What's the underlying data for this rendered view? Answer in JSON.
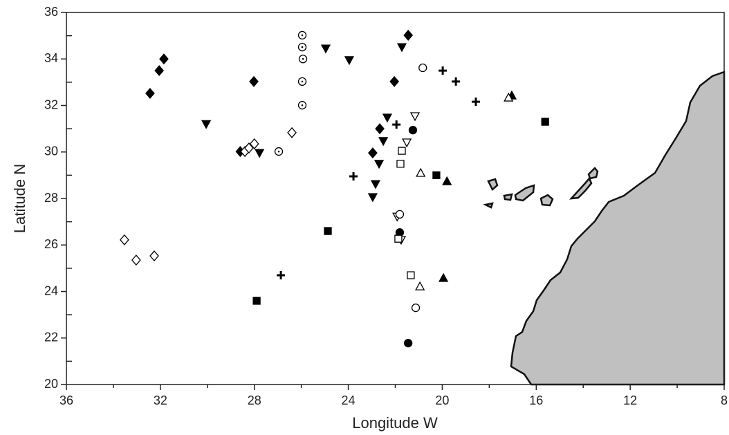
{
  "chart_data": {
    "type": "scatter",
    "x_label": "Longitude W",
    "y_label": "Latitude N",
    "xlim": [
      36,
      8
    ],
    "xticks": [
      36,
      32,
      28,
      24,
      20,
      16,
      12,
      8
    ],
    "xminorticks": [
      34,
      30,
      26,
      22,
      18,
      14,
      10
    ],
    "ylim": [
      20,
      36
    ],
    "yticks": [
      20,
      22,
      24,
      26,
      28,
      30,
      32,
      34,
      36
    ],
    "yminorticks": [
      21,
      23,
      25,
      27,
      29,
      31,
      33,
      35
    ],
    "series": [
      {
        "marker": "diamond",
        "color": "#000",
        "filled": true,
        "x": [
          32.44,
          32.05,
          31.85,
          28.02,
          28.6,
          22.66,
          22.96,
          21.45,
          22.04
        ],
        "values": [
          32.52,
          33.5,
          34.0,
          33.03,
          30.02,
          31.0,
          29.96,
          35.02,
          33.03
        ]
      },
      {
        "marker": "diamond",
        "color": "#000",
        "filled": false,
        "x": [
          33.53,
          33.03,
          32.26,
          28.4,
          28.23,
          28.0,
          26.4
        ],
        "values": [
          26.22,
          25.35,
          25.53,
          30.02,
          30.17,
          30.35,
          30.83
        ]
      },
      {
        "marker": "triangle-down",
        "color": "#000",
        "filled": true,
        "x": [
          30.05,
          24.96,
          23.96,
          21.72,
          27.78,
          22.34,
          22.51,
          22.69,
          22.84,
          22.96
        ],
        "values": [
          31.2,
          34.45,
          33.95,
          34.51,
          29.96,
          31.48,
          30.47,
          29.49,
          28.62,
          28.06
        ]
      },
      {
        "marker": "triangle-down",
        "color": "#000",
        "filled": false,
        "x": [
          21.16,
          21.51,
          21.92,
          21.75
        ],
        "values": [
          31.54,
          30.41,
          27.22,
          26.22
        ]
      },
      {
        "marker": "circle-dot",
        "color": "#000",
        "filled": false,
        "x": [
          25.96,
          25.96,
          25.93,
          25.96,
          25.96,
          26.96
        ],
        "values": [
          35.02,
          34.51,
          34.0,
          33.03,
          32.01,
          30.02
        ]
      },
      {
        "marker": "circle",
        "color": "#000",
        "filled": false,
        "x": [
          20.83,
          21.81,
          21.13
        ],
        "values": [
          33.62,
          27.32,
          23.3
        ]
      },
      {
        "marker": "circle",
        "color": "#000",
        "filled": true,
        "x": [
          21.25,
          21.81,
          21.45
        ],
        "values": [
          30.94,
          26.54,
          21.78
        ]
      },
      {
        "marker": "plus",
        "color": "#000",
        "filled": true,
        "x": [
          19.98,
          19.42,
          18.57,
          21.95,
          23.78,
          26.87
        ],
        "values": [
          33.5,
          33.03,
          32.16,
          31.18,
          28.95,
          24.7
        ]
      },
      {
        "marker": "square",
        "color": "#000",
        "filled": true,
        "x": [
          15.62,
          20.25,
          24.87,
          27.9
        ],
        "values": [
          31.3,
          29.0,
          26.6,
          23.6
        ]
      },
      {
        "marker": "square",
        "color": "#000",
        "filled": false,
        "x": [
          21.72,
          21.78,
          21.87,
          21.34
        ],
        "values": [
          30.05,
          29.49,
          26.27,
          24.7
        ]
      },
      {
        "marker": "triangle-up",
        "color": "#000",
        "filled": true,
        "x": [
          17.04,
          19.8,
          19.95
        ],
        "values": [
          32.43,
          28.74,
          24.58
        ]
      },
      {
        "marker": "triangle-up",
        "color": "#000",
        "filled": false,
        "x": [
          17.18,
          20.92,
          20.95
        ],
        "values": [
          32.34,
          29.1,
          24.22
        ]
      }
    ]
  }
}
